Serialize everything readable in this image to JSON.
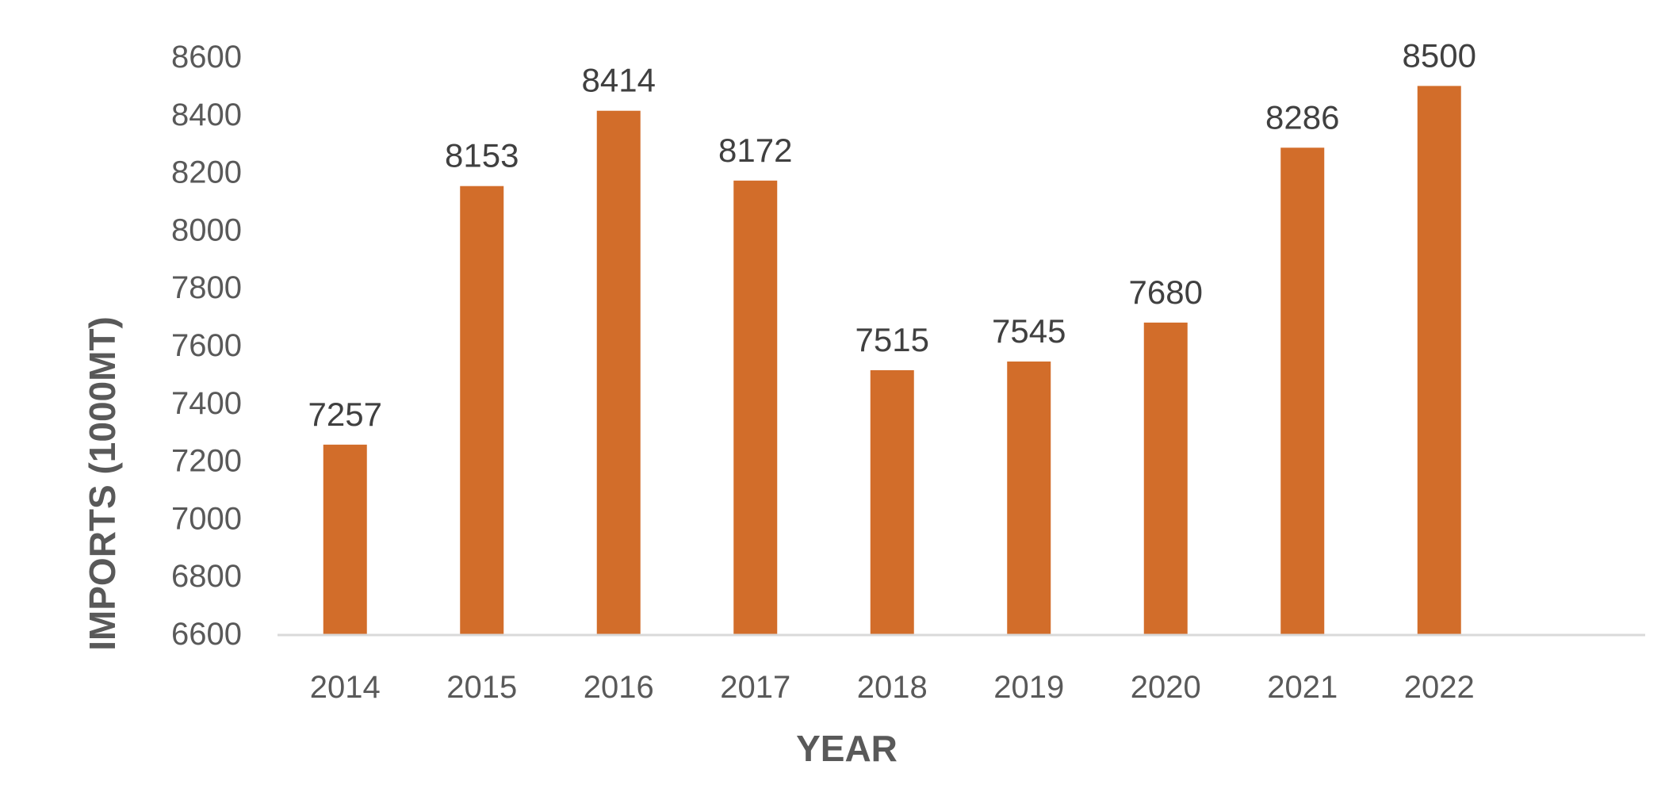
{
  "chart_data": {
    "type": "bar",
    "title": "",
    "xlabel": "YEAR",
    "ylabel": "IMPORTS  (1000MT)",
    "categories": [
      "2014",
      "2015",
      "2016",
      "2017",
      "2018",
      "2019",
      "2020",
      "2021",
      "2022"
    ],
    "values": [
      7257,
      8153,
      8414,
      8172,
      7515,
      7545,
      7680,
      8286,
      8500
    ],
    "data_labels": [
      "7257",
      "8153",
      "8414",
      "8172",
      "7515",
      "7545",
      "7680",
      "8286",
      "8500"
    ],
    "ylim": [
      6600,
      8600
    ],
    "yticks": [
      "6600",
      "6800",
      "7000",
      "7200",
      "7400",
      "7600",
      "7800",
      "8000",
      "8200",
      "8400",
      "8600"
    ],
    "grid": false,
    "legend": "none",
    "bar_color": "#D26D2A",
    "axis_color": "#D9D9D9"
  }
}
